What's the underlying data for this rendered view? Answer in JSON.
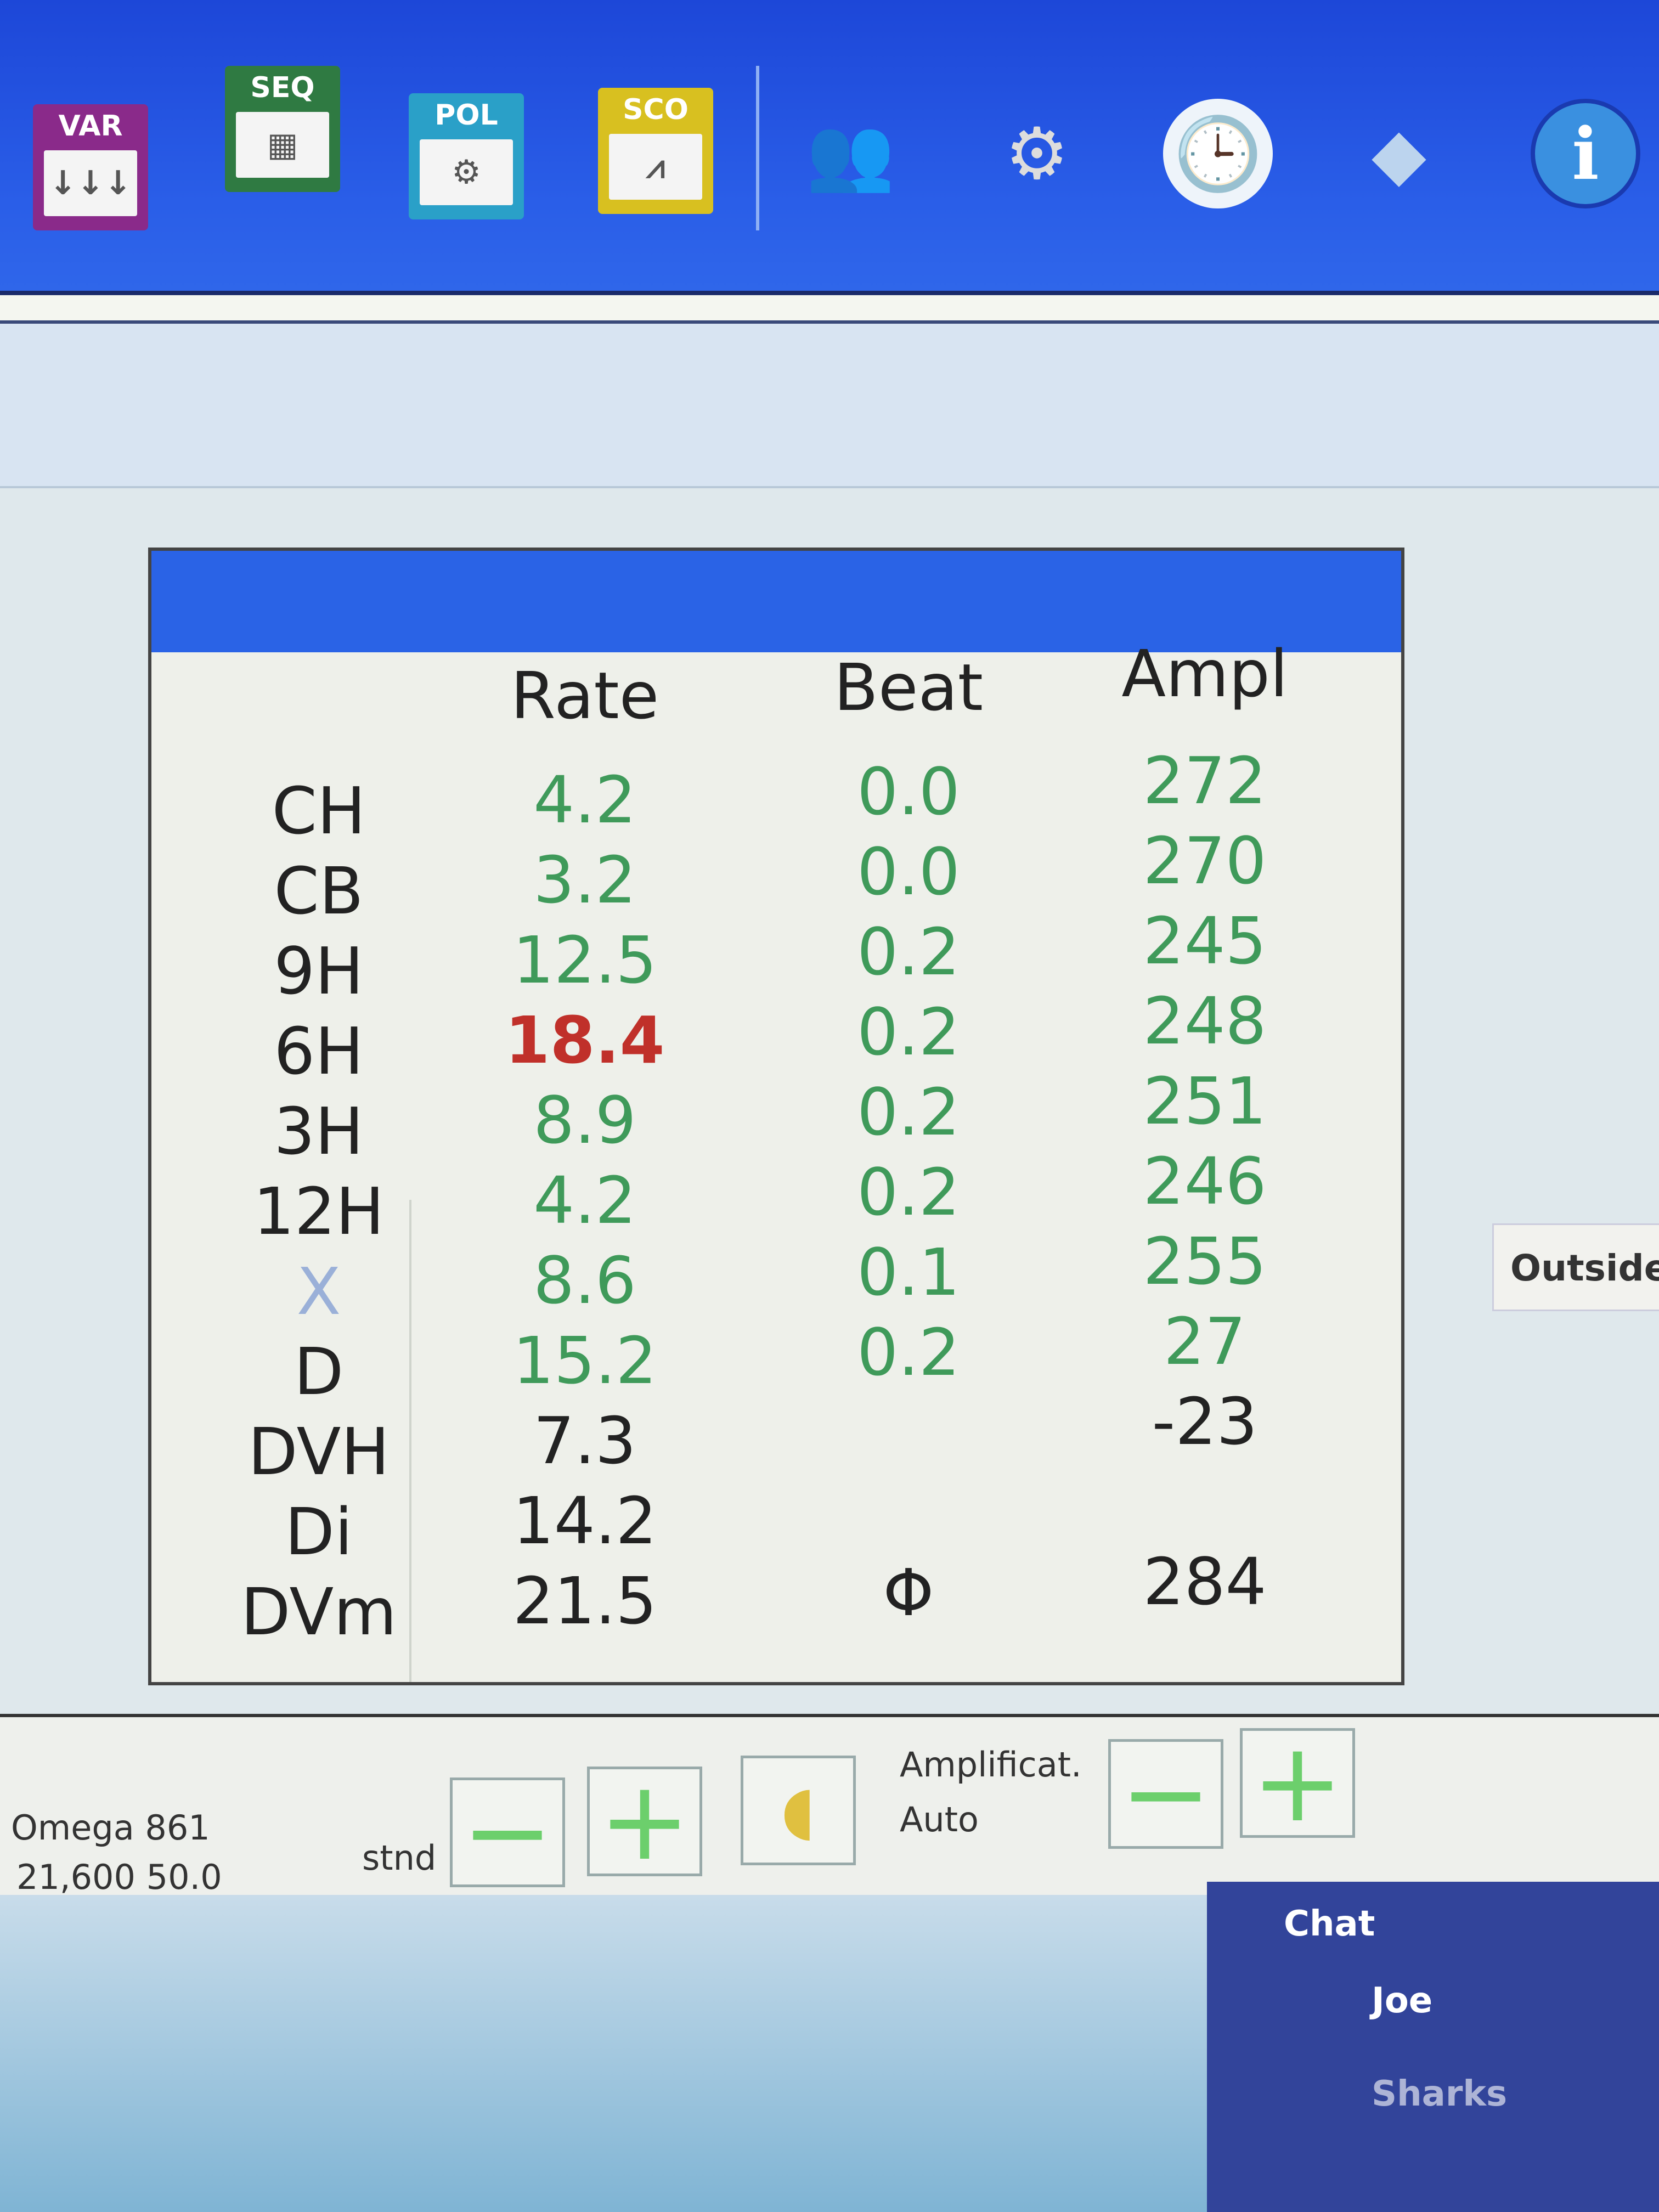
{
  "toolbar": {
    "icons": [
      {
        "name": "var-icon",
        "label": "VAR",
        "glyph": "↓↓↓",
        "color": "#8a2a8a"
      },
      {
        "name": "seq-icon",
        "label": "SEQ",
        "glyph": "▦",
        "color": "#2f7a42"
      },
      {
        "name": "pol-icon",
        "label": "POL",
        "glyph": "⚙",
        "color": "#2aa0c8"
      },
      {
        "name": "sco-icon",
        "label": "SCO",
        "glyph": "⩘",
        "color": "#d8c020"
      }
    ],
    "round_icons": [
      {
        "name": "users-icon",
        "glyph": "👥"
      },
      {
        "name": "settings-gear-icon",
        "glyph": "⚙"
      },
      {
        "name": "clock-icon",
        "glyph": "🕒"
      },
      {
        "name": "drop-icon",
        "glyph": "◆"
      },
      {
        "name": "info-icon",
        "glyph": "i"
      }
    ]
  },
  "table": {
    "headers": {
      "rate": "Rate",
      "beat": "Beat",
      "ampl": "Ampl"
    },
    "rows": [
      {
        "label": "CH",
        "rate": "4.2",
        "beat": "0.0",
        "ampl": "272"
      },
      {
        "label": "CB",
        "rate": "3.2",
        "beat": "0.0",
        "ampl": "270"
      },
      {
        "label": "9H",
        "rate": "12.5",
        "beat": "0.2",
        "ampl": "245"
      },
      {
        "label": "6H",
        "rate": "18.4",
        "beat": "0.2",
        "ampl": "248",
        "rate_alert": true
      },
      {
        "label": "3H",
        "rate": "8.9",
        "beat": "0.2",
        "ampl": "251"
      },
      {
        "label": "12H",
        "rate": "4.2",
        "beat": "0.2",
        "ampl": "246"
      },
      {
        "label": "X",
        "rate": "8.6",
        "beat": "0.1",
        "ampl": "255"
      },
      {
        "label": "D",
        "rate": "15.2",
        "beat": "0.2",
        "ampl": "27"
      },
      {
        "label": "DVH",
        "rate": "7.3",
        "beat": "",
        "ampl": "-23"
      },
      {
        "label": "Di",
        "rate": "14.2",
        "beat": "",
        "ampl": ""
      },
      {
        "label": "DVm",
        "rate": "21.5",
        "beat": "Φ",
        "ampl": "284"
      }
    ],
    "colors": {
      "normal": "#3f9a5a",
      "alert": "#c0302a",
      "plain": "#222222"
    }
  },
  "side": {
    "outside": "Outside"
  },
  "bottom": {
    "device": "Omega 861",
    "values": "21,600  50.0",
    "mode": "stnd",
    "amplificat_label": "Amplificat.",
    "amplificat_value": "Auto",
    "minus": "−",
    "plus": "+"
  },
  "chat": {
    "title": "Chat",
    "user1": "Joe",
    "user2": "Sharks"
  }
}
